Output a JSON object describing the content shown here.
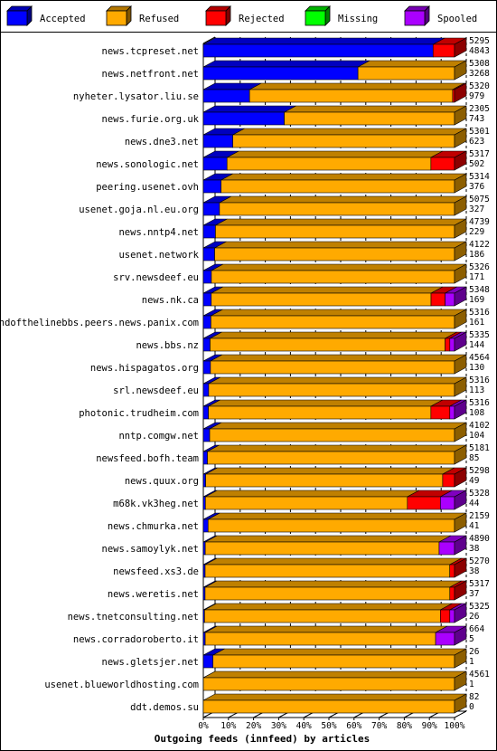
{
  "chart_data": {
    "type": "bar",
    "stacked": true,
    "orientation": "horizontal",
    "title": "Outgoing feeds (innfeed) by articles",
    "xlim": [
      0,
      100
    ],
    "x_ticks": [
      "0%",
      "10%",
      "20%",
      "30%",
      "40%",
      "50%",
      "60%",
      "70%",
      "80%",
      "90%",
      "100%"
    ],
    "legend": [
      {
        "name": "Accepted",
        "color": "#0000ff"
      },
      {
        "name": "Refused",
        "color": "#ffaa00"
      },
      {
        "name": "Rejected",
        "color": "#ff0000"
      },
      {
        "name": "Missing",
        "color": "#00ff00"
      },
      {
        "name": "Spooled",
        "color": "#aa00ff"
      }
    ],
    "feeds": [
      {
        "name": "news.tcpreset.net",
        "accepted": 4843,
        "refused": 0,
        "rejected": 452,
        "missing": 0,
        "spooled": 0,
        "offered": 5295,
        "accepted_label": 4843
      },
      {
        "name": "news.netfront.net",
        "accepted": 3268,
        "refused": 2040,
        "rejected": 0,
        "missing": 0,
        "spooled": 0,
        "offered": 5308,
        "accepted_label": 3268
      },
      {
        "name": "nyheter.lysator.liu.se",
        "accepted": 979,
        "refused": 4301,
        "rejected": 40,
        "missing": 0,
        "spooled": 0,
        "offered": 5320,
        "accepted_label": 979
      },
      {
        "name": "news.furie.org.uk",
        "accepted": 743,
        "refused": 1562,
        "rejected": 0,
        "missing": 0,
        "spooled": 0,
        "offered": 2305,
        "accepted_label": 743
      },
      {
        "name": "news.dne3.net",
        "accepted": 623,
        "refused": 4678,
        "rejected": 0,
        "missing": 0,
        "spooled": 0,
        "offered": 5301,
        "accepted_label": 623
      },
      {
        "name": "news.sonologic.net",
        "accepted": 502,
        "refused": 4315,
        "rejected": 500,
        "missing": 0,
        "spooled": 0,
        "offered": 5317,
        "accepted_label": 502
      },
      {
        "name": "peering.usenet.ovh",
        "accepted": 376,
        "refused": 4938,
        "rejected": 0,
        "missing": 0,
        "spooled": 0,
        "offered": 5314,
        "accepted_label": 376
      },
      {
        "name": "usenet.goja.nl.eu.org",
        "accepted": 327,
        "refused": 4748,
        "rejected": 0,
        "missing": 0,
        "spooled": 0,
        "offered": 5075,
        "accepted_label": 327
      },
      {
        "name": "news.nntp4.net",
        "accepted": 229,
        "refused": 4510,
        "rejected": 0,
        "missing": 0,
        "spooled": 0,
        "offered": 4739,
        "accepted_label": 229
      },
      {
        "name": "usenet.network",
        "accepted": 186,
        "refused": 3936,
        "rejected": 0,
        "missing": 0,
        "spooled": 0,
        "offered": 4122,
        "accepted_label": 186
      },
      {
        "name": "srv.newsdeef.eu",
        "accepted": 171,
        "refused": 5155,
        "rejected": 0,
        "missing": 0,
        "spooled": 0,
        "offered": 5326,
        "accepted_label": 171
      },
      {
        "name": "news.nk.ca",
        "accepted": 169,
        "refused": 4679,
        "rejected": 300,
        "missing": 0,
        "spooled": 200,
        "offered": 5348,
        "accepted_label": 169
      },
      {
        "name": "endofthelinebbs.peers.news.panix.com",
        "accepted": 161,
        "refused": 5155,
        "rejected": 0,
        "missing": 0,
        "spooled": 0,
        "offered": 5316,
        "accepted_label": 161
      },
      {
        "name": "news.bbs.nz",
        "accepted": 144,
        "refused": 4991,
        "rejected": 100,
        "missing": 0,
        "spooled": 100,
        "offered": 5335,
        "accepted_label": 144
      },
      {
        "name": "news.hispagatos.org",
        "accepted": 130,
        "refused": 4434,
        "rejected": 0,
        "missing": 0,
        "spooled": 0,
        "offered": 4564,
        "accepted_label": 130
      },
      {
        "name": "srl.newsdeef.eu",
        "accepted": 113,
        "refused": 5203,
        "rejected": 0,
        "missing": 0,
        "spooled": 0,
        "offered": 5316,
        "accepted_label": 113
      },
      {
        "name": "photonic.trudheim.com",
        "accepted": 108,
        "refused": 4708,
        "rejected": 400,
        "missing": 0,
        "spooled": 100,
        "offered": 5316,
        "accepted_label": 108
      },
      {
        "name": "nntp.comgw.net",
        "accepted": 104,
        "refused": 3998,
        "rejected": 0,
        "missing": 0,
        "spooled": 0,
        "offered": 4102,
        "accepted_label": 104
      },
      {
        "name": "newsfeed.bofh.team",
        "accepted": 85,
        "refused": 5096,
        "rejected": 0,
        "missing": 0,
        "spooled": 0,
        "offered": 5181,
        "accepted_label": 85
      },
      {
        "name": "news.quux.org",
        "accepted": 49,
        "refused": 4999,
        "rejected": 250,
        "missing": 0,
        "spooled": 0,
        "offered": 5298,
        "accepted_label": 49
      },
      {
        "name": "m68k.vk3heg.net",
        "accepted": 44,
        "refused": 4284,
        "rejected": 700,
        "missing": 0,
        "spooled": 300,
        "offered": 5328,
        "accepted_label": 44
      },
      {
        "name": "news.chmurka.net",
        "accepted": 41,
        "refused": 2118,
        "rejected": 0,
        "missing": 0,
        "spooled": 0,
        "offered": 2159,
        "accepted_label": 41
      },
      {
        "name": "news.samoylyk.net",
        "accepted": 38,
        "refused": 4552,
        "rejected": 0,
        "missing": 0,
        "spooled": 300,
        "offered": 4890,
        "accepted_label": 38
      },
      {
        "name": "newsfeed.xs3.de",
        "accepted": 38,
        "refused": 5132,
        "rejected": 100,
        "missing": 0,
        "spooled": 0,
        "offered": 5270,
        "accepted_label": 38
      },
      {
        "name": "news.weretis.net",
        "accepted": 37,
        "refused": 5180,
        "rejected": 100,
        "missing": 0,
        "spooled": 0,
        "offered": 5317,
        "accepted_label": 37
      },
      {
        "name": "news.tnetconsulting.net",
        "accepted": 26,
        "refused": 4999,
        "rejected": 200,
        "missing": 0,
        "spooled": 100,
        "offered": 5325,
        "accepted_label": 26
      },
      {
        "name": "news.corradoroberto.it",
        "accepted": 5,
        "refused": 609,
        "rejected": 0,
        "missing": 0,
        "spooled": 50,
        "offered": 664,
        "accepted_label": 5
      },
      {
        "name": "news.gletsjer.net",
        "accepted": 1,
        "refused": 25,
        "rejected": 0,
        "missing": 0,
        "spooled": 0,
        "offered": 26,
        "accepted_label": 1
      },
      {
        "name": "usenet.blueworldhosting.com",
        "accepted": 1,
        "refused": 4560,
        "rejected": 0,
        "missing": 0,
        "spooled": 0,
        "offered": 4561,
        "accepted_label": 1
      },
      {
        "name": "ddt.demos.su",
        "accepted": 0,
        "refused": 82,
        "rejected": 0,
        "missing": 0,
        "spooled": 0,
        "offered": 82,
        "accepted_label": 0
      }
    ]
  }
}
